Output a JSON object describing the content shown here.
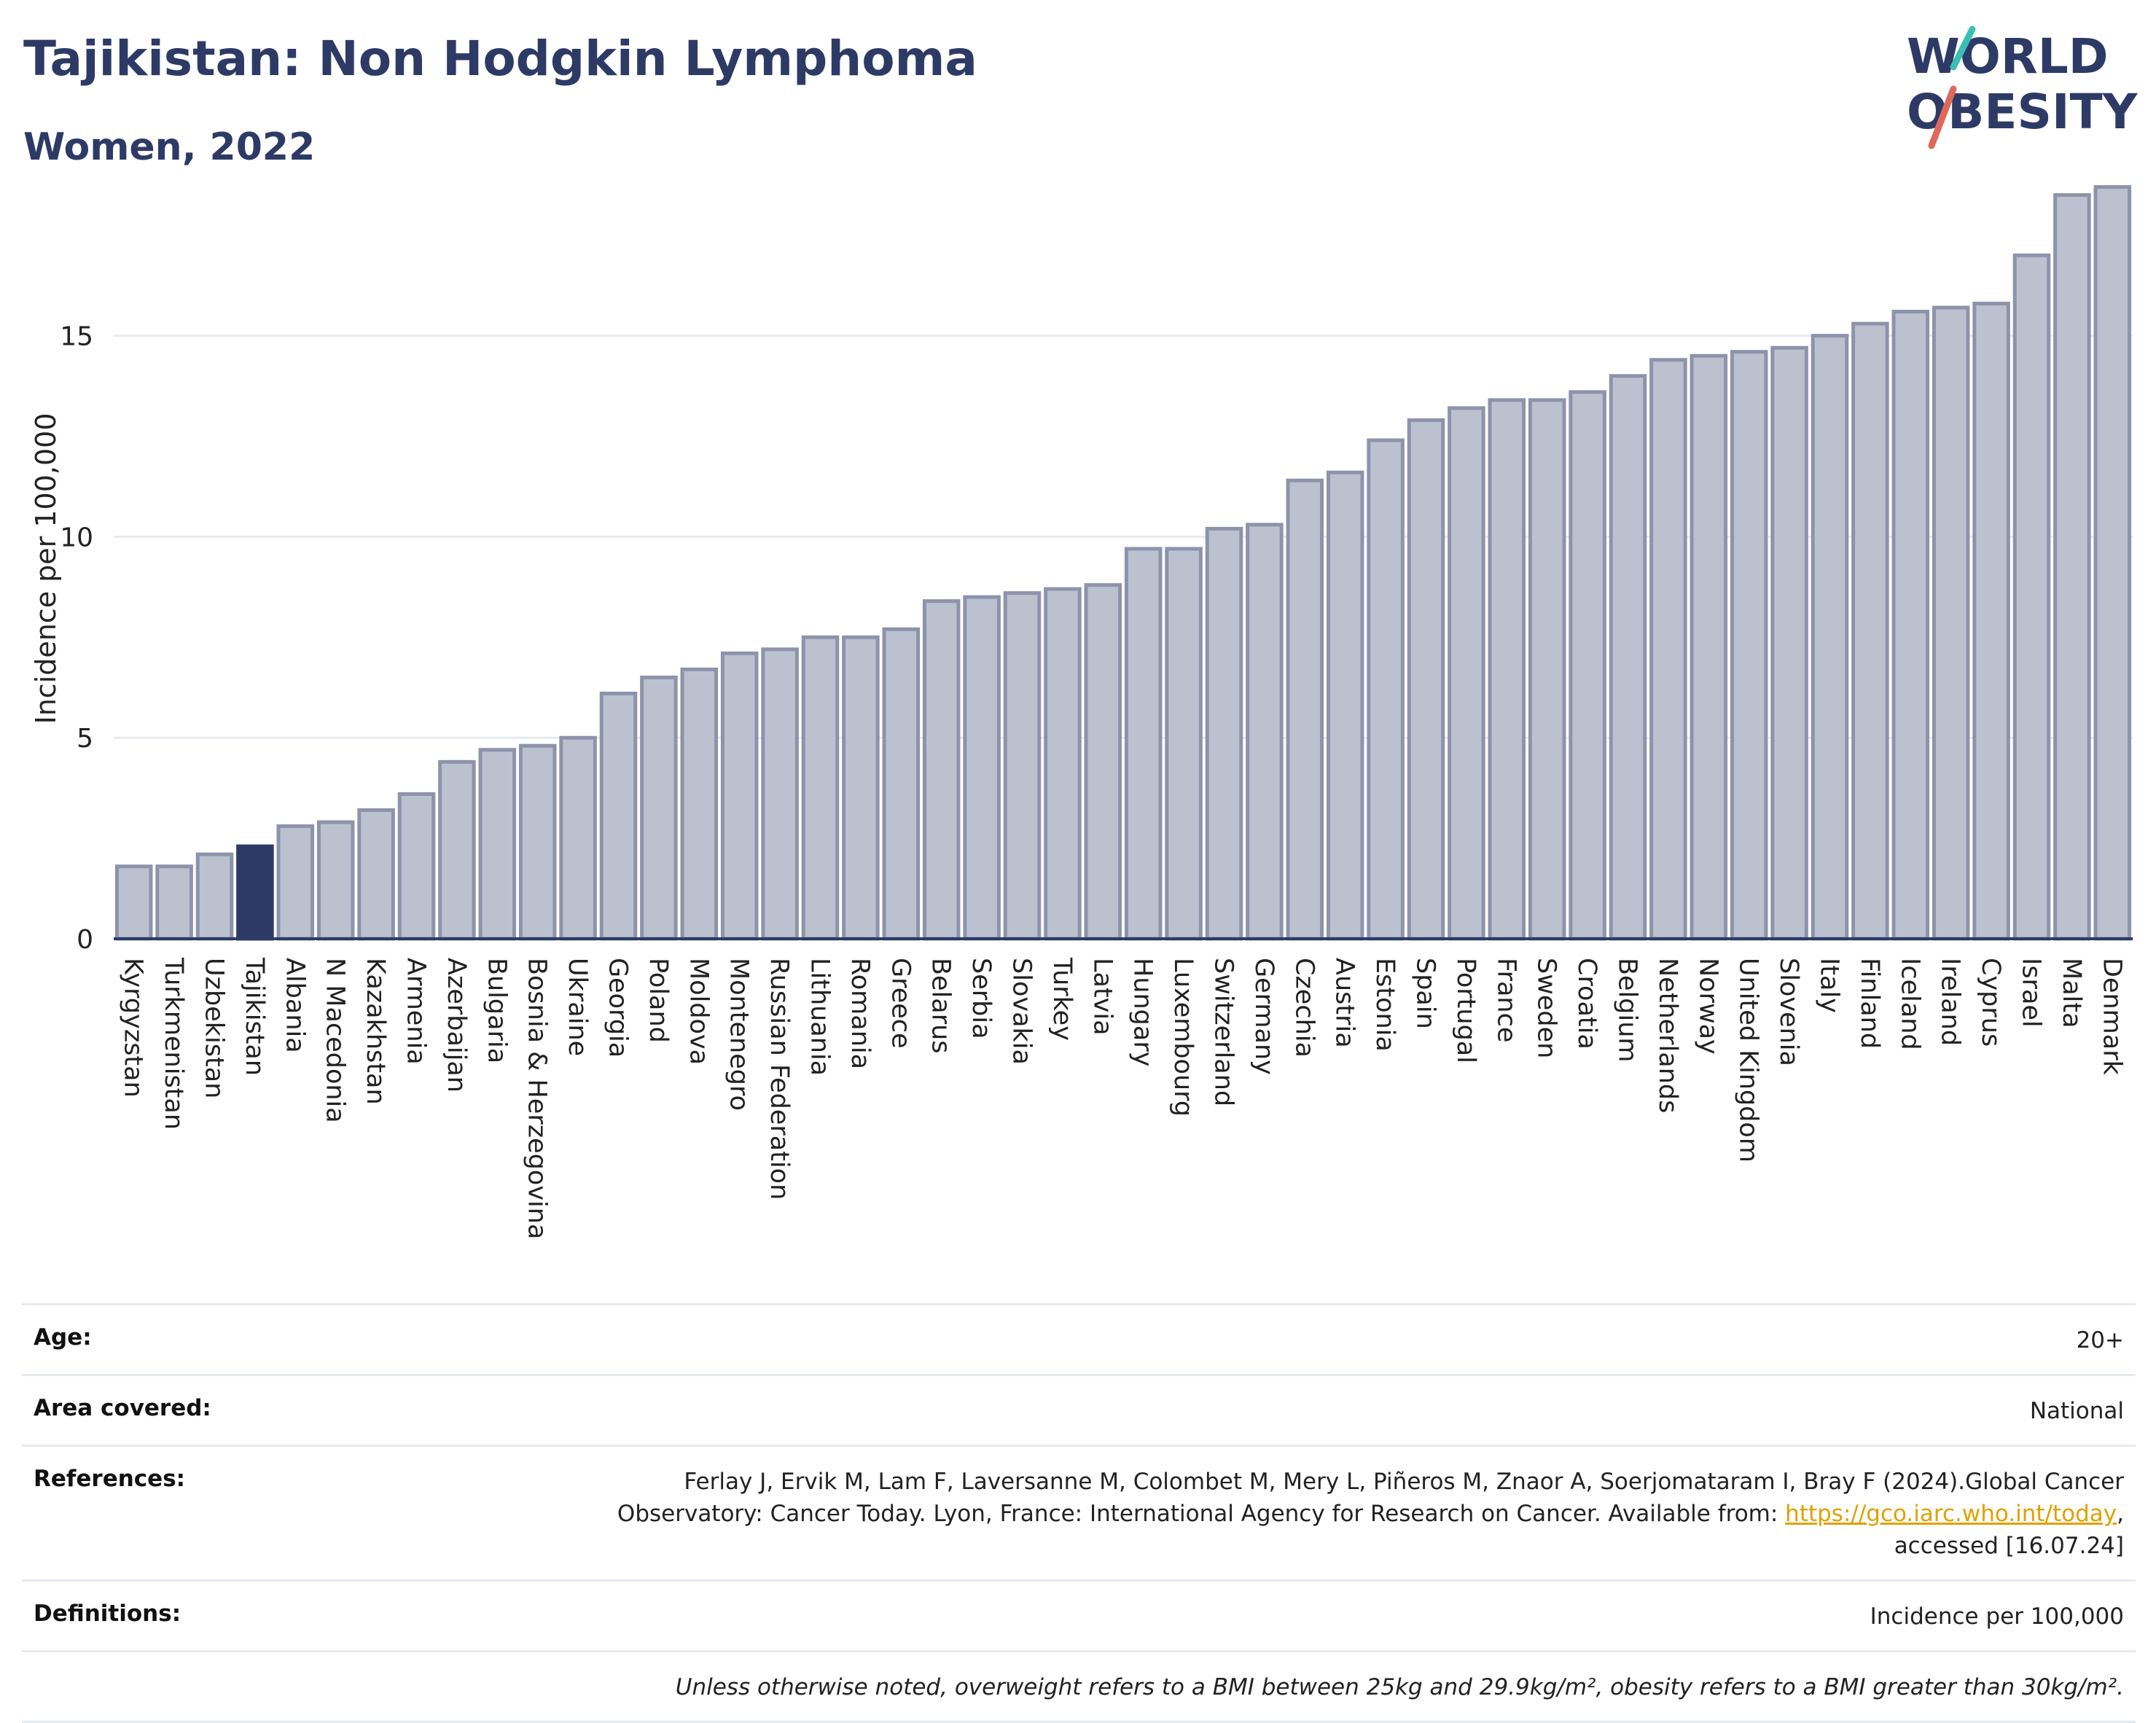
{
  "header": {
    "title": "Tajikistan: Non Hodgkin Lymphoma",
    "subtitle": "Women, 2022",
    "logo_line1": "WORLD",
    "logo_line2": "OBESITY"
  },
  "colors": {
    "title": "#2e3a66",
    "bar": "#bcc1d0",
    "bar_edge": "#8d93ab",
    "highlight": "#2e3a66",
    "logo_teal": "#3bbfb4",
    "logo_red": "#e0685a",
    "link": "#e0a100"
  },
  "chart_data": {
    "type": "bar",
    "ylabel": "Incidence per 100,000",
    "ylim": [
      0,
      19
    ],
    "yticks": [
      0,
      5,
      10,
      15
    ],
    "highlight": "Tajikistan",
    "categories": [
      "Kyrgyzstan",
      "Turkmenistan",
      "Uzbekistan",
      "Tajikistan",
      "Albania",
      "N Macedonia",
      "Kazakhstan",
      "Armenia",
      "Azerbaijan",
      "Bulgaria",
      "Bosnia & Herzegovina",
      "Ukraine",
      "Georgia",
      "Poland",
      "Moldova",
      "Montenegro",
      "Russian Federation",
      "Lithuania",
      "Romania",
      "Greece",
      "Belarus",
      "Serbia",
      "Slovakia",
      "Turkey",
      "Latvia",
      "Hungary",
      "Luxembourg",
      "Switzerland",
      "Germany",
      "Czechia",
      "Austria",
      "Estonia",
      "Spain",
      "Portugal",
      "France",
      "Sweden",
      "Croatia",
      "Belgium",
      "Netherlands",
      "Norway",
      "United Kingdom",
      "Slovenia",
      "Italy",
      "Finland",
      "Iceland",
      "Ireland",
      "Cyprus",
      "Israel",
      "Malta",
      "Denmark"
    ],
    "values": [
      1.8,
      1.8,
      2.1,
      2.3,
      2.8,
      2.9,
      3.2,
      3.6,
      4.4,
      4.7,
      4.8,
      5.0,
      6.1,
      6.5,
      6.7,
      7.1,
      7.2,
      7.5,
      7.5,
      7.7,
      8.4,
      8.5,
      8.6,
      8.7,
      8.8,
      9.7,
      9.7,
      10.2,
      10.3,
      11.4,
      11.6,
      12.4,
      12.9,
      13.2,
      13.4,
      13.4,
      13.6,
      14.0,
      14.4,
      14.5,
      14.6,
      14.7,
      15.0,
      15.3,
      15.6,
      15.7,
      15.8,
      17.0,
      18.5,
      18.7
    ]
  },
  "info": {
    "age_label": "Age:",
    "age_value": "20+",
    "area_label": "Area covered:",
    "area_value": "National",
    "references_label": "References:",
    "references_line1": "Ferlay J, Ervik M, Lam F, Laversanne M, Colombet M, Mery L, Piñeros M, Znaor A, Soerjomataram I, Bray F (2024).Global Cancer",
    "references_line2": "Observatory: Cancer Today. Lyon, France: International Agency for Research on Cancer. Available from: ",
    "references_link": "https://gco.iarc.who.int/today",
    "references_line2_end": ",",
    "references_line3": "accessed [16.07.24]",
    "definitions_label": "Definitions:",
    "definitions_value": "Incidence per 100,000",
    "note": "Unless otherwise noted, overweight refers to a BMI between 25kg and 29.9kg/m², obesity refers to a BMI greater than 30kg/m²."
  }
}
